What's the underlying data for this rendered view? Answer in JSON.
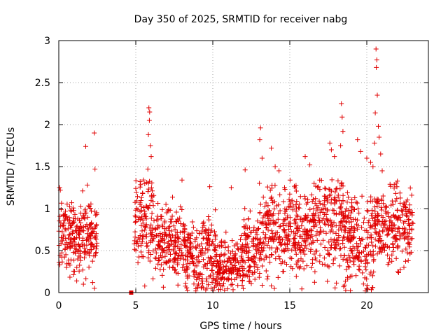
{
  "chart_data": {
    "type": "scatter",
    "title": "Day 350 of 2025, SRMTID for receiver nabg",
    "xlabel": "GPS time / hours",
    "ylabel": "SRMTID / TECUs",
    "xlim": [
      0,
      24
    ],
    "ylim": [
      0,
      3
    ],
    "xticks": [
      0,
      5,
      10,
      15,
      20
    ],
    "yticks": [
      0,
      0.5,
      1,
      1.5,
      2,
      2.5,
      3
    ],
    "xtick_labels": [
      "0",
      "5",
      "10",
      "15",
      "20"
    ],
    "ytick_labels": [
      "0",
      "0.5",
      "1",
      "1.5",
      "2",
      "2.5",
      "3"
    ],
    "grid": true,
    "marker": "plus",
    "color": "#e00000",
    "segments": [
      {
        "start": 0.0,
        "end": 2.5,
        "median": 0.68,
        "spread": 0.2
      },
      {
        "start": 4.9,
        "end": 6.2,
        "median": 0.85,
        "spread": 0.28
      },
      {
        "start": 6.2,
        "end": 8.2,
        "median": 0.6,
        "spread": 0.2
      },
      {
        "start": 8.2,
        "end": 9.4,
        "median": 0.42,
        "spread": 0.2
      },
      {
        "start": 9.4,
        "end": 10.2,
        "median": 0.5,
        "spread": 0.22
      },
      {
        "start": 10.2,
        "end": 12.0,
        "median": 0.3,
        "spread": 0.15
      },
      {
        "start": 12.0,
        "end": 13.0,
        "median": 0.55,
        "spread": 0.22
      },
      {
        "start": 13.0,
        "end": 14.2,
        "median": 0.75,
        "spread": 0.3
      },
      {
        "start": 14.2,
        "end": 16.5,
        "median": 0.72,
        "spread": 0.25
      },
      {
        "start": 16.5,
        "end": 18.5,
        "median": 0.85,
        "spread": 0.3
      },
      {
        "start": 18.5,
        "end": 20.5,
        "median": 0.62,
        "spread": 0.28
      },
      {
        "start": 20.5,
        "end": 23.0,
        "median": 0.78,
        "spread": 0.22
      }
    ],
    "outliers": [
      {
        "x": 0.05,
        "y": 1.25
      },
      {
        "x": 0.1,
        "y": 1.22
      },
      {
        "x": 1.75,
        "y": 1.74
      },
      {
        "x": 1.85,
        "y": 1.28
      },
      {
        "x": 2.3,
        "y": 1.9
      },
      {
        "x": 2.35,
        "y": 1.47
      },
      {
        "x": 5.85,
        "y": 2.2
      },
      {
        "x": 5.9,
        "y": 2.15
      },
      {
        "x": 5.88,
        "y": 2.05
      },
      {
        "x": 5.82,
        "y": 1.88
      },
      {
        "x": 5.95,
        "y": 1.75
      },
      {
        "x": 6.0,
        "y": 1.62
      },
      {
        "x": 5.78,
        "y": 1.47
      },
      {
        "x": 8.0,
        "y": 1.34
      },
      {
        "x": 9.8,
        "y": 1.26
      },
      {
        "x": 11.2,
        "y": 1.25
      },
      {
        "x": 12.1,
        "y": 1.46
      },
      {
        "x": 13.1,
        "y": 1.96
      },
      {
        "x": 13.05,
        "y": 1.82
      },
      {
        "x": 13.2,
        "y": 1.6
      },
      {
        "x": 13.8,
        "y": 1.72
      },
      {
        "x": 14.05,
        "y": 1.5
      },
      {
        "x": 14.3,
        "y": 1.45
      },
      {
        "x": 16.0,
        "y": 1.62
      },
      {
        "x": 16.3,
        "y": 1.52
      },
      {
        "x": 17.6,
        "y": 1.78
      },
      {
        "x": 17.7,
        "y": 1.7
      },
      {
        "x": 17.9,
        "y": 1.62
      },
      {
        "x": 18.35,
        "y": 2.25
      },
      {
        "x": 18.4,
        "y": 2.09
      },
      {
        "x": 18.45,
        "y": 1.92
      },
      {
        "x": 18.3,
        "y": 1.75
      },
      {
        "x": 19.4,
        "y": 1.82
      },
      {
        "x": 19.6,
        "y": 1.68
      },
      {
        "x": 20.0,
        "y": 1.6
      },
      {
        "x": 20.25,
        "y": 1.55
      },
      {
        "x": 20.6,
        "y": 2.9
      },
      {
        "x": 20.65,
        "y": 2.77
      },
      {
        "x": 20.62,
        "y": 2.68
      },
      {
        "x": 20.68,
        "y": 2.35
      },
      {
        "x": 20.55,
        "y": 2.14
      },
      {
        "x": 20.75,
        "y": 1.98
      },
      {
        "x": 20.8,
        "y": 1.85
      },
      {
        "x": 20.5,
        "y": 1.78
      },
      {
        "x": 20.9,
        "y": 1.65
      },
      {
        "x": 20.4,
        "y": 1.5
      },
      {
        "x": 21.0,
        "y": 1.45
      },
      {
        "x": 0.5,
        "y": 0.3
      },
      {
        "x": 1.6,
        "y": 0.1
      },
      {
        "x": 2.2,
        "y": 0.12
      },
      {
        "x": 8.9,
        "y": 0.02
      },
      {
        "x": 10.5,
        "y": 0.04
      },
      {
        "x": 14.0,
        "y": 0.05
      },
      {
        "x": 19.9,
        "y": 0.02
      },
      {
        "x": 20.0,
        "y": 0.05
      }
    ],
    "point_count": 2000,
    "square_marker": {
      "x": 4.7,
      "y": 0.0
    }
  }
}
